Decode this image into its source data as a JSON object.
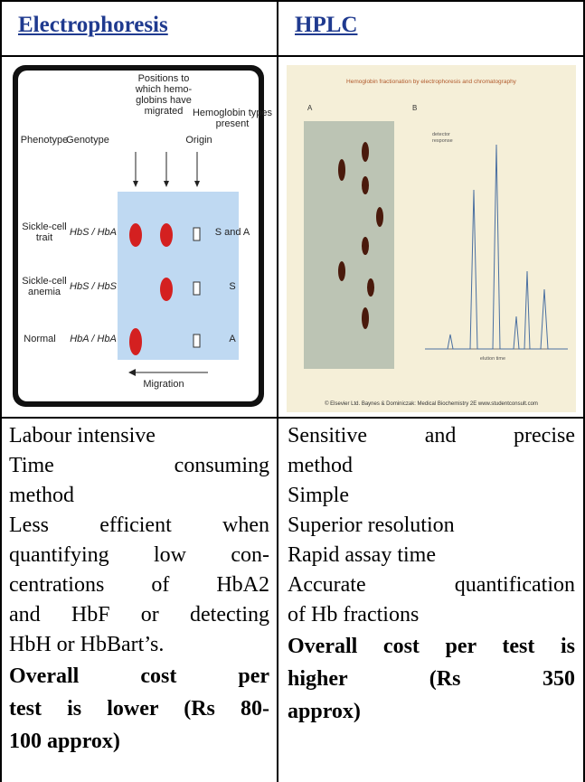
{
  "table": {
    "header": [
      "Electrophoresis",
      "HPLC"
    ],
    "figures": [
      {
        "migrated_label": [
          "Positions to",
          "which hemo-",
          "globins have",
          "migrated"
        ],
        "origin": "Origin",
        "types_label": [
          "Hemoglobin types",
          "present"
        ],
        "phenotype": "Phenotype",
        "genotype": "Genotype",
        "rows": [
          {
            "phenotype": [
              "Sickle-cell",
              "trait"
            ],
            "genotype": "HbS / HbA",
            "types": "S and A"
          },
          {
            "phenotype": [
              "Sickle-cell",
              "anemia"
            ],
            "genotype": "HbS / HbS",
            "types": "S"
          },
          {
            "phenotype": [
              "Normal"
            ],
            "genotype": "HbA / HbA",
            "types": "A"
          }
        ],
        "migration": "Migration"
      },
      {
        "title": "Hemoglobin fractionation by electrophoresis and chromatography",
        "panels": [
          "A",
          "B"
        ],
        "y_label": [
          "detector",
          "response"
        ],
        "x_label": "elution time",
        "caption": "© Elsevier Ltd. Baynes & Dominiczak: Medical Biochemistry 2E www.studentconsult.com"
      }
    ],
    "body": [
      {
        "paragraphs": [
          [
            "Labour intensive"
          ],
          [
            "Time consuming",
            "method"
          ],
          [
            "Less efficient when",
            "quantifying low con-",
            "centrations of HbA2",
            "and HbF or detecting",
            "HbH or HbBart’s."
          ]
        ],
        "note": [
          "Overall cost per",
          "test is lower (Rs 80-",
          "100 approx)"
        ]
      },
      {
        "paragraphs": [
          [
            "Sensitive and precise",
            "method"
          ],
          [
            "Simple"
          ],
          [
            "Superior resolution"
          ],
          [
            "Rapid assay time"
          ],
          [
            "Accurate quantification",
            "of Hb fractions"
          ]
        ],
        "note": [
          "Overall cost per test is",
          "higher (Rs 350",
          "approx)"
        ]
      }
    ]
  }
}
